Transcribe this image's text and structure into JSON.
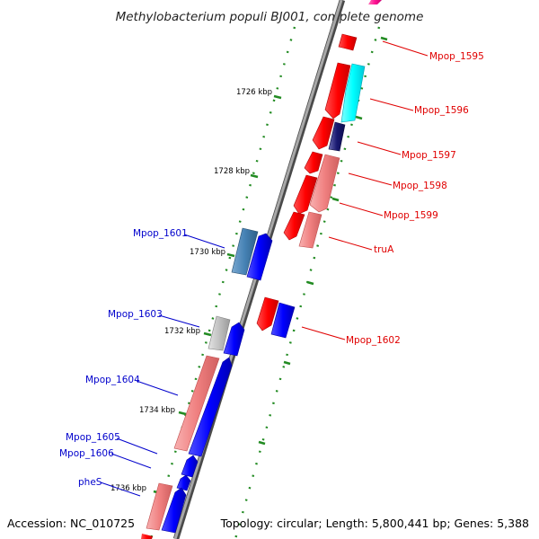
{
  "title": "Methylobacterium populi BJ001, complete genome",
  "accession": "Accession: NC_010725",
  "summary": "Topology: circular; Length: 5,800,441 bp; Genes: 5,388",
  "tick_labels": [
    "1726 kbp",
    "1728 kbp",
    "1730 kbp",
    "1732 kbp",
    "1734 kbp",
    "1736 kbp"
  ],
  "forward_gene_labels": [
    "Mpop_1595",
    "Mpop_1596",
    "Mpop_1597",
    "Mpop_1598",
    "Mpop_1599",
    "truA",
    "Mpop_1602"
  ],
  "reverse_gene_labels": [
    "Mpop_1601",
    "Mpop_1603",
    "Mpop_1604",
    "Mpop_1605",
    "Mpop_1606",
    "pheS"
  ],
  "colors": {
    "backbone": "#808080",
    "track_dots": "#228b22",
    "forward_label": "#e00000",
    "reverse_label": "#0000cc",
    "cds_red": "#ff0000",
    "cds_light_red": "#f08080",
    "cds_cyan": "#00ffff",
    "cds_navy": "#191970",
    "cds_blue": "#0000ff",
    "cds_steel": "#4682b4",
    "cds_grey": "#c0c0c0",
    "cds_magenta": "#ff1493"
  }
}
